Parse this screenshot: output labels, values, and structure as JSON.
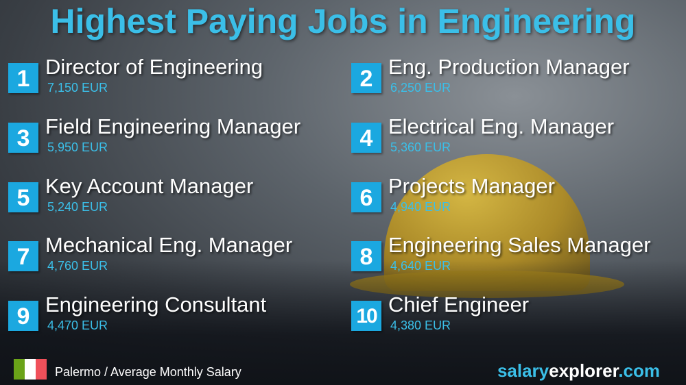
{
  "title": "Highest Paying Jobs in Engineering",
  "jobs": [
    {
      "rank": "1",
      "title": "Director of Engineering",
      "salary": "7,150 EUR"
    },
    {
      "rank": "2",
      "title": "Eng. Production Manager",
      "salary": "6,250 EUR"
    },
    {
      "rank": "3",
      "title": "Field Engineering Manager",
      "salary": "5,950 EUR"
    },
    {
      "rank": "4",
      "title": "Electrical Eng. Manager",
      "salary": "5,360 EUR"
    },
    {
      "rank": "5",
      "title": "Key Account Manager",
      "salary": "5,240 EUR"
    },
    {
      "rank": "6",
      "title": "Projects Manager",
      "salary": "4,940 EUR"
    },
    {
      "rank": "7",
      "title": "Mechanical Eng. Manager",
      "salary": "4,760 EUR"
    },
    {
      "rank": "8",
      "title": "Engineering Sales Manager",
      "salary": "4,640 EUR"
    },
    {
      "rank": "9",
      "title": "Engineering Consultant",
      "salary": "4,470 EUR"
    },
    {
      "rank": "10",
      "title": "Chief Engineer",
      "salary": "4,380 EUR"
    }
  ],
  "footer": {
    "location": "Palermo / Average Monthly Salary",
    "brand_part1": "salary",
    "brand_part2": "explorer",
    "brand_part3": ".com",
    "flag": "italy-flag"
  },
  "colors": {
    "accent": "#3bbfe8",
    "badge": "#1ba8e0",
    "brand_white": "#ffffff"
  }
}
